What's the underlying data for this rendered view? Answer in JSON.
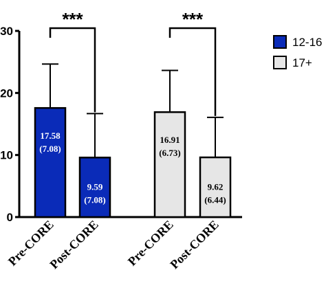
{
  "chart_data": {
    "type": "bar",
    "categories": [
      "Pre-CORE",
      "Post-CORE",
      "Pre-CORE",
      "Post-CORE"
    ],
    "groups": [
      {
        "name": "12-16",
        "color": "#0a2bb8",
        "label_color": "#ffffff",
        "bars": [
          {
            "category": "Pre-CORE",
            "mean": 17.58,
            "sd": 7.08,
            "line1": "17.58",
            "line2": "(7.08)"
          },
          {
            "category": "Post-CORE",
            "mean": 9.59,
            "sd": 7.08,
            "line1": "9.59",
            "line2": "(7.08)"
          }
        ],
        "significance": "***"
      },
      {
        "name": "17+",
        "color": "#e6e6e6",
        "label_color": "#000000",
        "bars": [
          {
            "category": "Pre-CORE",
            "mean": 16.91,
            "sd": 6.73,
            "line1": "16.91",
            "line2": "(6.73)"
          },
          {
            "category": "Post-CORE",
            "mean": 9.62,
            "sd": 6.44,
            "line1": "9.62",
            "line2": "(6.44)"
          }
        ],
        "significance": "***"
      }
    ],
    "yticks": [
      0,
      10,
      20,
      30
    ],
    "ylim": [
      0,
      30
    ],
    "legend": {
      "position": "top-right",
      "entries": [
        "12-16",
        "17+"
      ]
    },
    "grid": false
  }
}
